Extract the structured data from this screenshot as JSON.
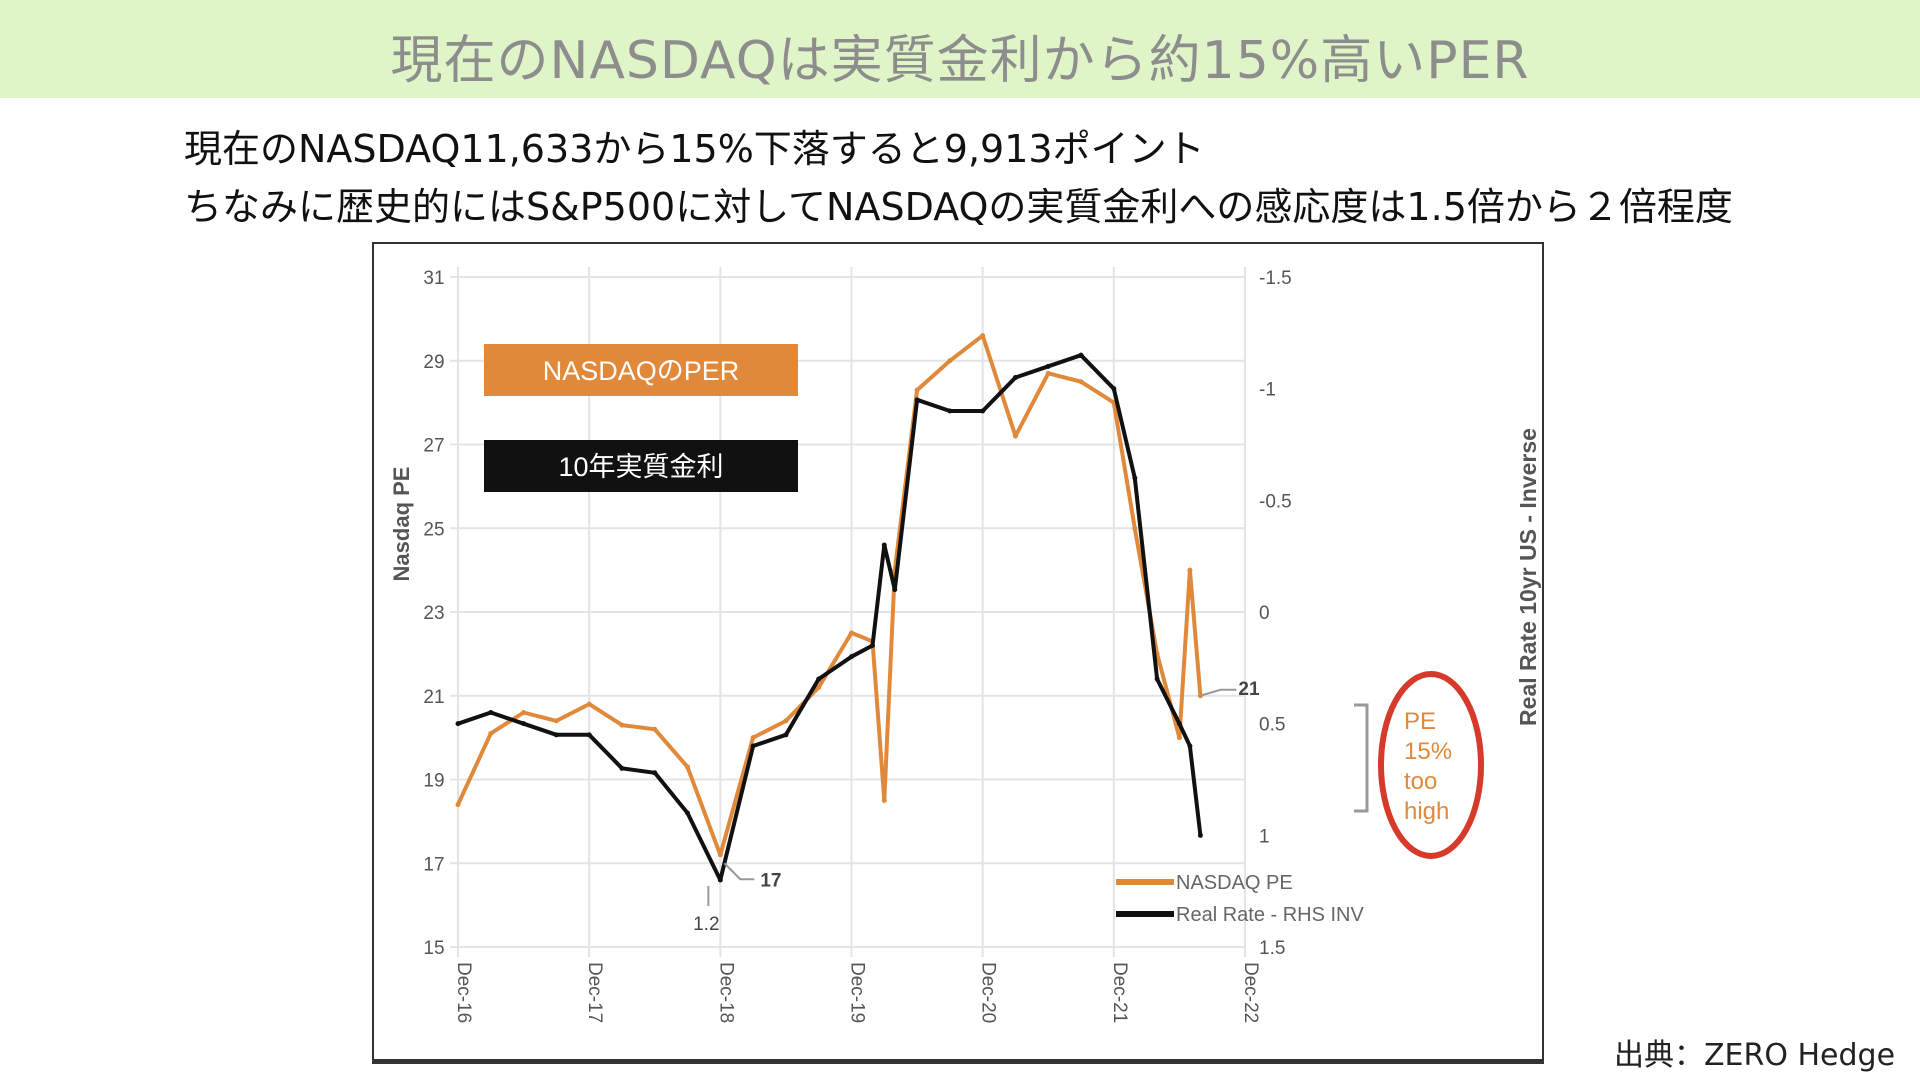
{
  "header": {
    "title": "現在のNASDAQは実質金利から約15%高いPER",
    "subtitle_1": "現在のNASDAQ11,633から15%下落すると9,913ポイント",
    "subtitle_2": "ちなみに歴史的にはS&P500に対してNASDAQの実質金利への感応度は1.5倍から２倍程度"
  },
  "source_note": "出典：ZERO Hedge",
  "colors": {
    "pe": "#e0893a",
    "rate": "#111111",
    "circle": "#d63a2a",
    "banner_bg": "#dff5c8"
  },
  "chart_data": {
    "type": "line",
    "xlabel": "",
    "ylabel_left": "Nasdaq PE",
    "ylabel_right": "Real Rate 10yr US - Inverse",
    "ylim_left": [
      15,
      31
    ],
    "ylim_right_inverted": [
      -1.5,
      1.5
    ],
    "yticks_left": [
      "15",
      "17",
      "19",
      "21",
      "23",
      "25",
      "27",
      "29",
      "31"
    ],
    "yticks_right": [
      "-1.5",
      "-1",
      "-0.5",
      "0",
      "0.5",
      "1",
      "1.5"
    ],
    "xticks": [
      "Dec-16",
      "Dec-17",
      "Dec-18",
      "Dec-19",
      "Dec-20",
      "Dec-21",
      "Dec-22"
    ],
    "x": [
      2016.92,
      2017.17,
      2017.42,
      2017.67,
      2017.92,
      2018.17,
      2018.42,
      2018.67,
      2018.92,
      2019.17,
      2019.42,
      2019.67,
      2019.92,
      2020.08,
      2020.17,
      2020.25,
      2020.42,
      2020.67,
      2020.92,
      2021.17,
      2021.42,
      2021.67,
      2021.92,
      2022.08,
      2022.25,
      2022.42,
      2022.5,
      2022.58
    ],
    "series": [
      {
        "name": "NASDAQ PE",
        "axis": "left",
        "values": [
          18.4,
          20.1,
          20.6,
          20.4,
          20.8,
          20.3,
          20.2,
          19.3,
          17.2,
          20.0,
          20.4,
          21.2,
          22.5,
          22.3,
          18.5,
          24.0,
          28.3,
          29.0,
          29.6,
          27.2,
          28.7,
          28.5,
          28.0,
          25.0,
          22.0,
          20.0,
          24.0,
          21.0
        ]
      },
      {
        "name": "Real Rate - RHS INV",
        "axis": "right",
        "values": [
          0.5,
          0.45,
          0.5,
          0.55,
          0.55,
          0.7,
          0.72,
          0.9,
          1.2,
          0.6,
          0.55,
          0.3,
          0.2,
          0.15,
          -0.3,
          -0.1,
          -0.95,
          -0.9,
          -0.9,
          -1.05,
          -1.1,
          -1.15,
          -1.0,
          -0.6,
          0.3,
          0.5,
          0.6,
          1.0
        ]
      }
    ],
    "annotations": [
      {
        "text": "17",
        "target": "NASDAQ PE",
        "x": 2018.92,
        "y": 17
      },
      {
        "text": "1.2",
        "target": "Real Rate - RHS INV",
        "x": 2018.92,
        "y": 1.2
      },
      {
        "text": "21",
        "target": "NASDAQ PE",
        "x": 2022.58,
        "y": 21
      }
    ],
    "callout_text": [
      "PE",
      "15%",
      "too",
      "high"
    ],
    "label_boxes": {
      "pe": "NASDAQのPER",
      "rate": "10年実質金利"
    },
    "legend": {
      "placement": "bottom-right",
      "pe": "NASDAQ PE",
      "rate": "Real Rate - RHS INV"
    }
  }
}
